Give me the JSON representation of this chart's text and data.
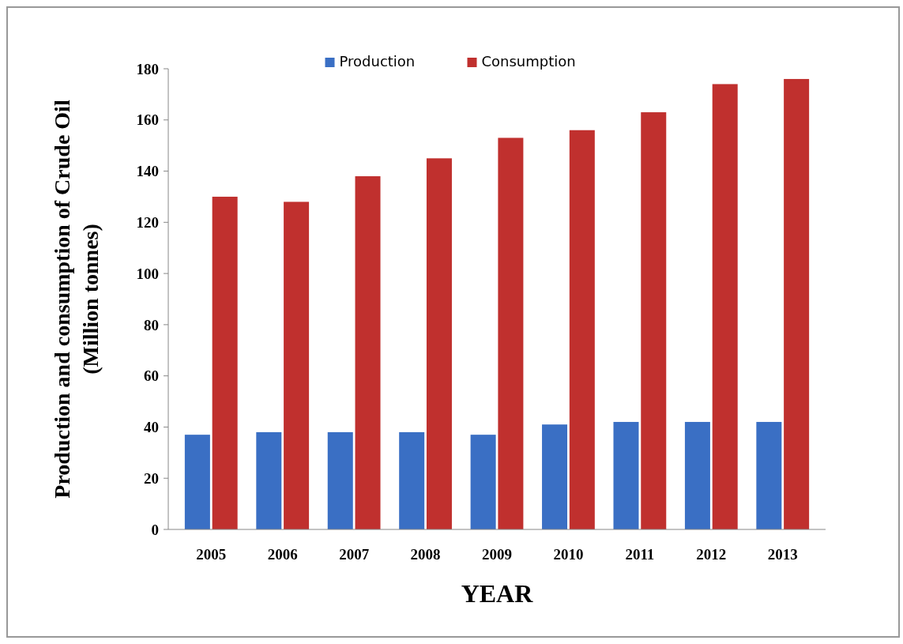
{
  "chart_data": {
    "type": "bar",
    "xlabel": "YEAR",
    "ylabel": "Production and consumption of Crude Oil (Million tonnes)",
    "categories": [
      "2005",
      "2006",
      "2007",
      "2008",
      "2009",
      "2010",
      "2011",
      "2012",
      "2013"
    ],
    "series": [
      {
        "name": "Production",
        "color": "#3a6fc4",
        "values": [
          37,
          38,
          38,
          38,
          37,
          41,
          42,
          42,
          42
        ]
      },
      {
        "name": "Consumption",
        "color": "#c0302e",
        "values": [
          130,
          128,
          138,
          145,
          153,
          156,
          163,
          174,
          176
        ]
      }
    ],
    "ylim": [
      0,
      180
    ],
    "yticks": [
      0,
      20,
      40,
      60,
      80,
      100,
      120,
      140,
      160,
      180
    ],
    "grid": false,
    "legend": "top"
  }
}
